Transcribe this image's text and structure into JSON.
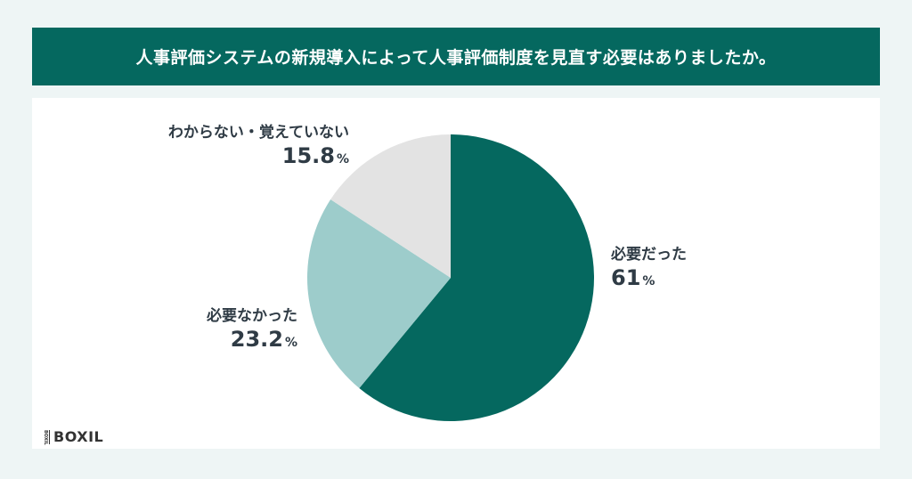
{
  "title": "人事評価システムの新規導入によって人事評価制度を見直す必要はありましたか。",
  "logo": {
    "badge": "BOXIL",
    "text": "BOXIL"
  },
  "chart_data": {
    "type": "pie",
    "title": "人事評価システムの新規導入によって人事評価制度を見直す必要はありましたか。",
    "slices": [
      {
        "label": "必要だった",
        "value": 61,
        "value_text": "61",
        "color": "#05685f"
      },
      {
        "label": "必要なかった",
        "value": 23.2,
        "value_text": "23.2",
        "color": "#9dcccb"
      },
      {
        "label": "わからない・覚えていない",
        "value": 15.8,
        "value_text": "15.8",
        "color": "#e3e3e3"
      }
    ],
    "unit": "%",
    "start_angle": "12 o'clock",
    "direction": "clockwise",
    "legend": "none"
  }
}
